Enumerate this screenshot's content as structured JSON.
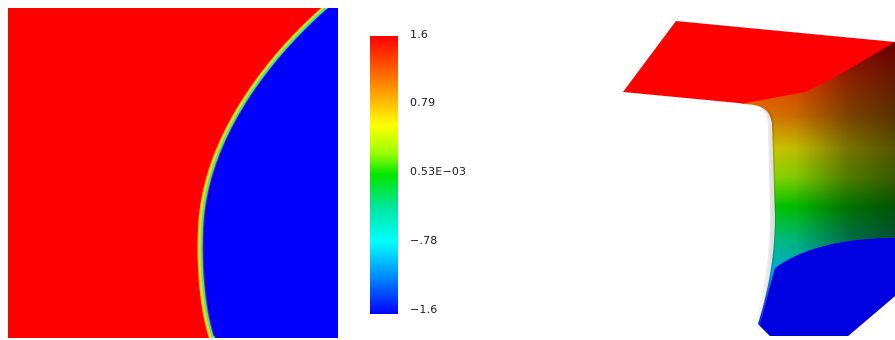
{
  "colors": {
    "high": "#ff0000",
    "low": "#0000ff",
    "interface": "#ffd400"
  },
  "colorbar": {
    "labels": [
      "1.6",
      "0.79",
      "0.53E−03",
      "−.78",
      "−1.6"
    ],
    "gradient": [
      "#ff0000",
      "#ff8c00",
      "#ffff00",
      "#9aff00",
      "#00e600",
      "#00e6a0",
      "#00ffff",
      "#0090ff",
      "#0000ff"
    ]
  }
}
